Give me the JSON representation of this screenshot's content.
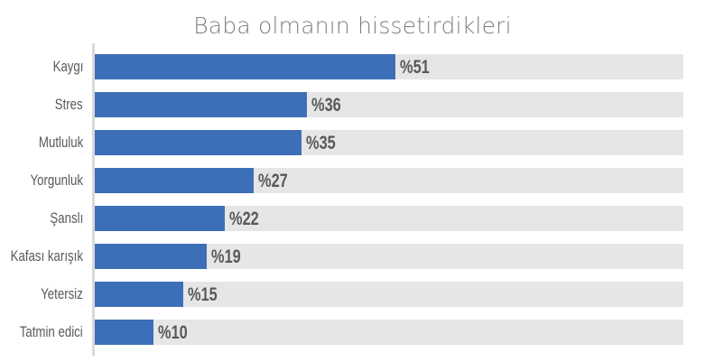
{
  "chart_data": {
    "type": "bar",
    "orientation": "horizontal",
    "title": "Baba olmanın hissetirdikleri",
    "categories": [
      "Kaygı",
      "Stres",
      "Mutluluk",
      "Yorgunluk",
      "Şanslı",
      "Kafası karışık",
      "Yetersiz",
      "Tatmin edici"
    ],
    "values": [
      51,
      36,
      35,
      27,
      22,
      19,
      15,
      10
    ],
    "value_labels": [
      "%51",
      "%36",
      "%35",
      "%27",
      "%22",
      "%19",
      "%15",
      "%10"
    ],
    "xlabel": "",
    "ylabel": "",
    "xlim": [
      0,
      100
    ],
    "grid": false,
    "legend": null,
    "colors": {
      "bar": "#3d6fb8",
      "track": "#e6e6e6",
      "label": "#595959",
      "title": "#7f7f7f"
    }
  }
}
